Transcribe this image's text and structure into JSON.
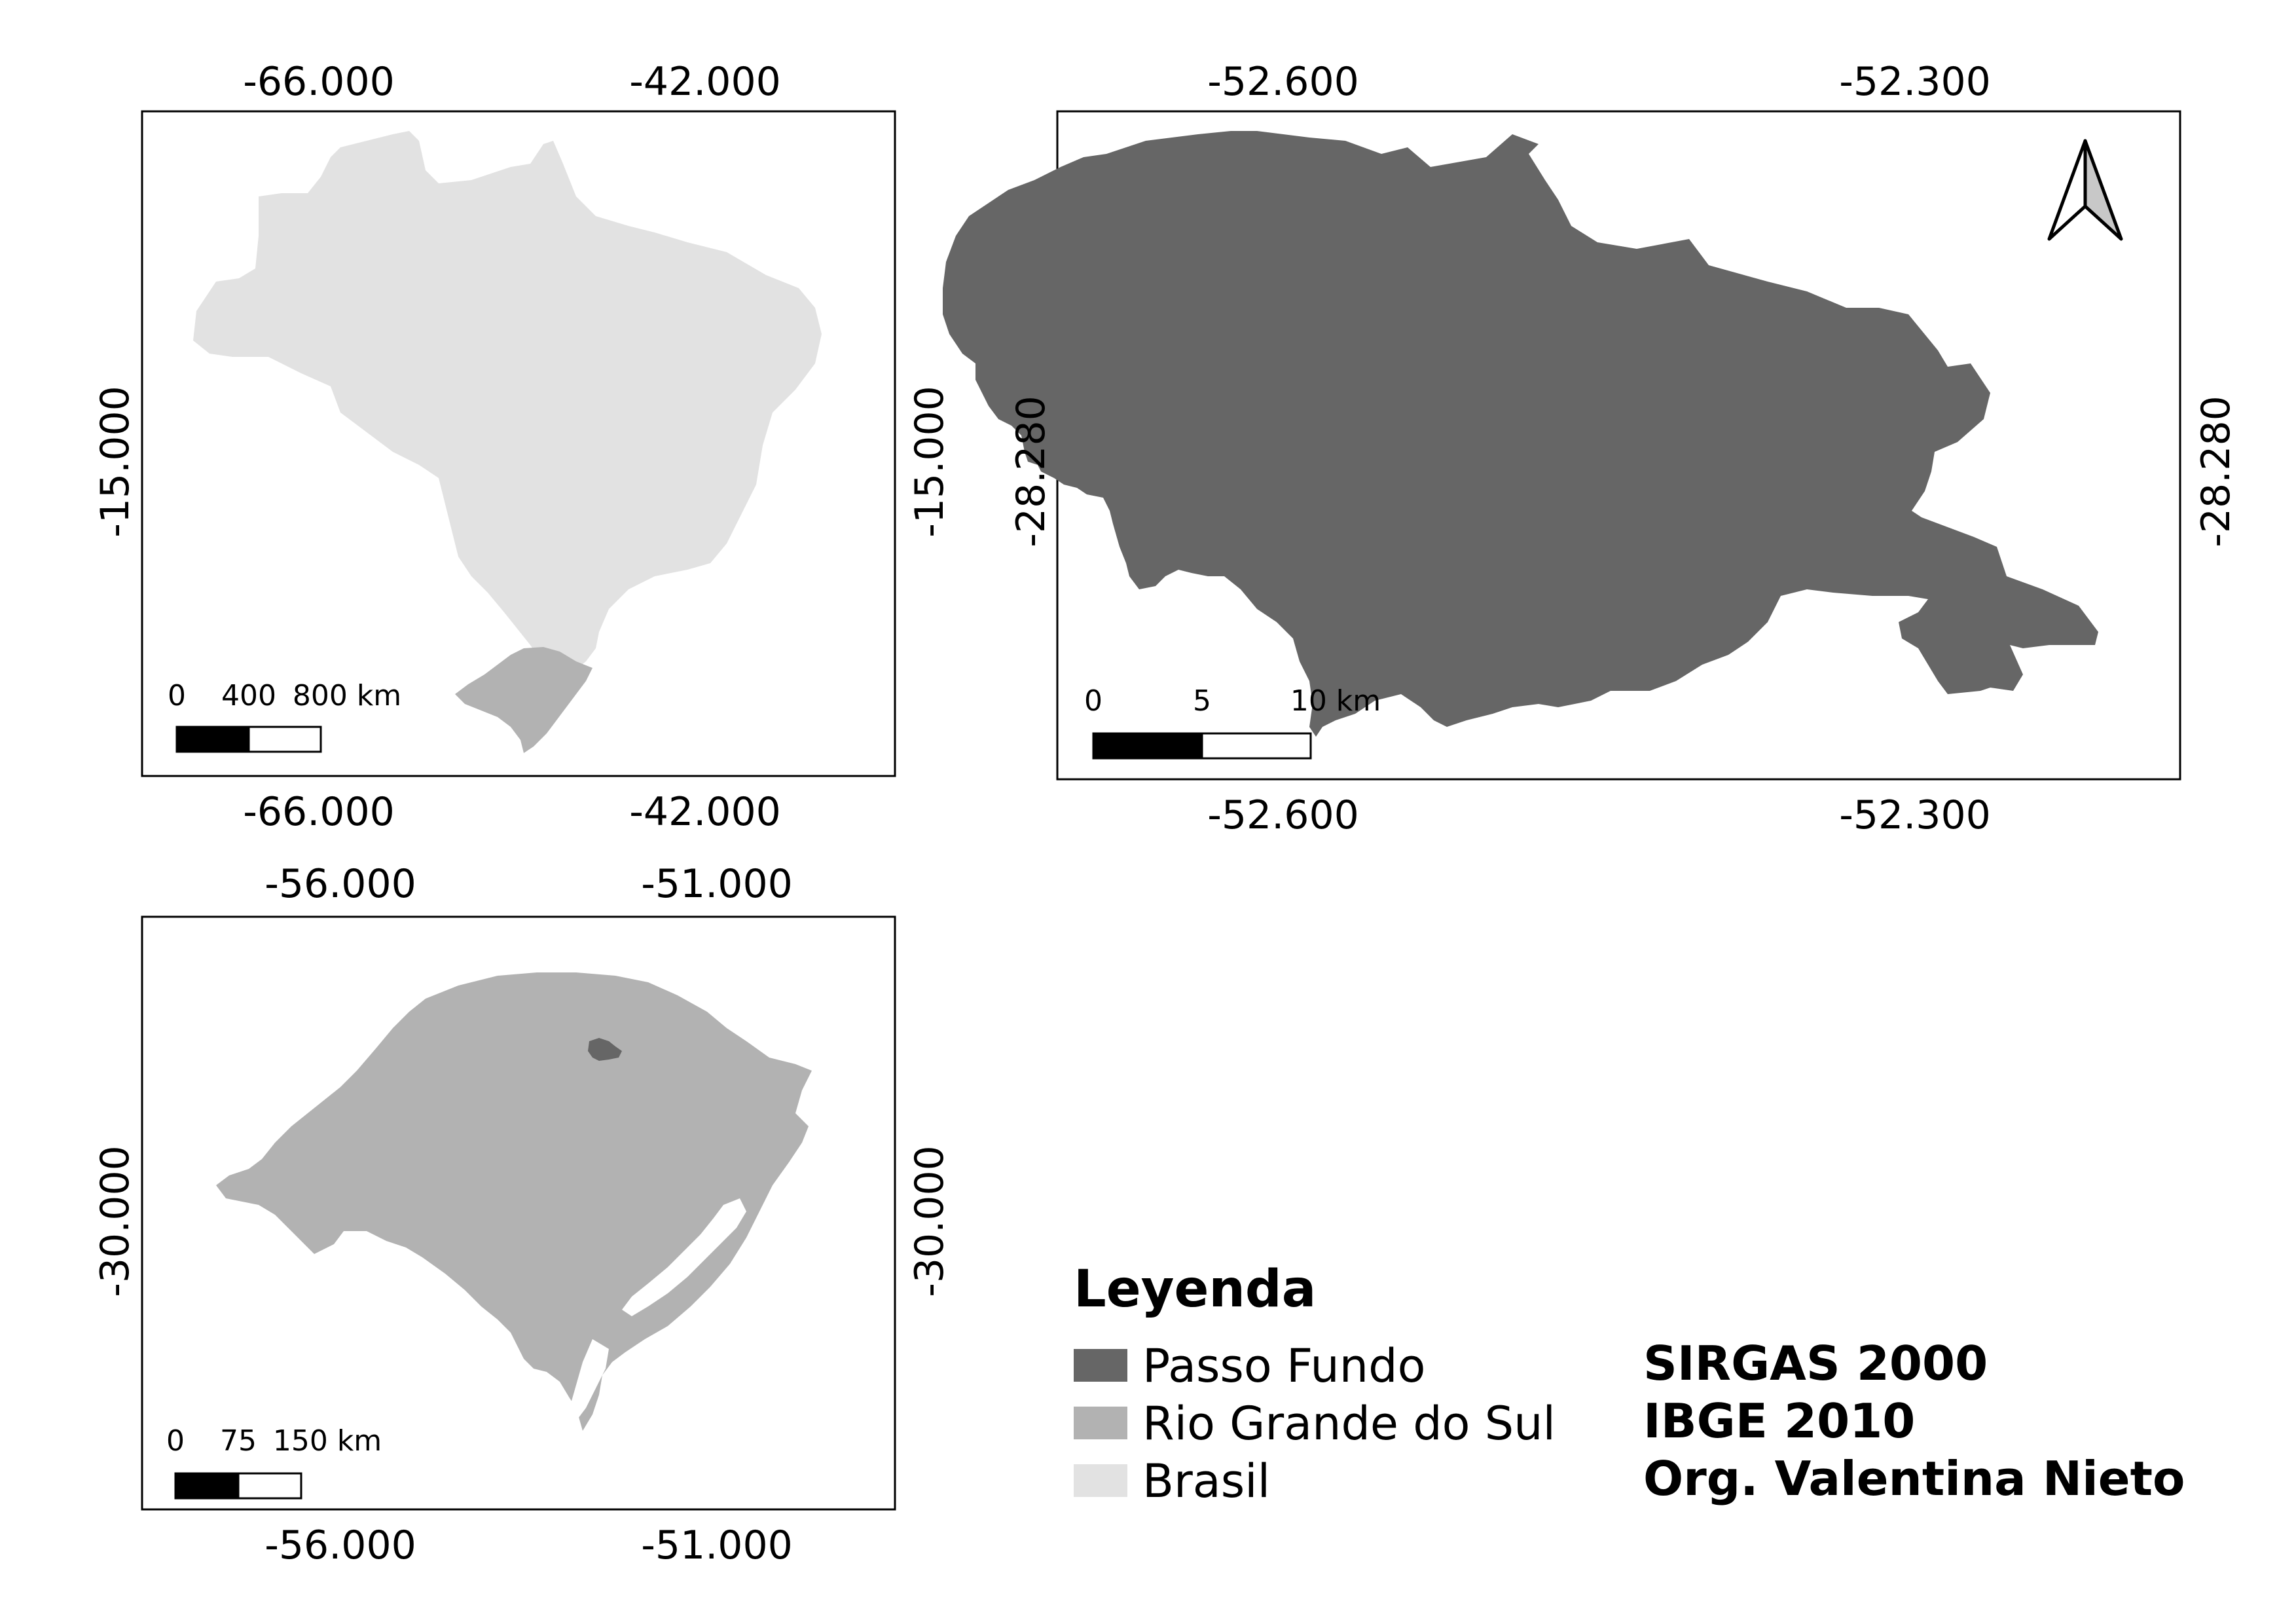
{
  "colors": {
    "passo_fundo": "#666666",
    "rio_grande_do_sul": "#b2b2b2",
    "brasil": "#e2e2e2",
    "frame": "#000000"
  },
  "map_brasil": {
    "top_x_labels": [
      "-66.000",
      "-42.000"
    ],
    "bottom_x_labels": [
      "-66.000",
      "-42.000"
    ],
    "left_y_label": "-15.000",
    "right_y_label": "-15.000",
    "scalebar_labels": [
      "0",
      "400",
      "800 km"
    ]
  },
  "map_passo_fundo": {
    "top_x_labels": [
      "-52.600",
      "-52.300"
    ],
    "bottom_x_labels": [
      "-52.600",
      "-52.300"
    ],
    "left_y_label": "-28.280",
    "right_y_label": "-28.280",
    "scalebar_labels": [
      "0",
      "5",
      "10 km"
    ],
    "north_arrow": "north-arrow-icon"
  },
  "map_rs": {
    "top_x_labels": [
      "-56.000",
      "-51.000"
    ],
    "bottom_x_labels": [
      "-56.000",
      "-51.000"
    ],
    "left_y_label": "-30.000",
    "right_y_label": "-30.000",
    "scalebar_labels": [
      "0",
      "75",
      "150 km"
    ]
  },
  "legend": {
    "title": "Leyenda",
    "items": [
      "Passo Fundo",
      "Rio Grande do Sul",
      "Brasil"
    ]
  },
  "credits": [
    "SIRGAS 2000",
    "IBGE 2010",
    "Org. Valentina Nieto"
  ]
}
